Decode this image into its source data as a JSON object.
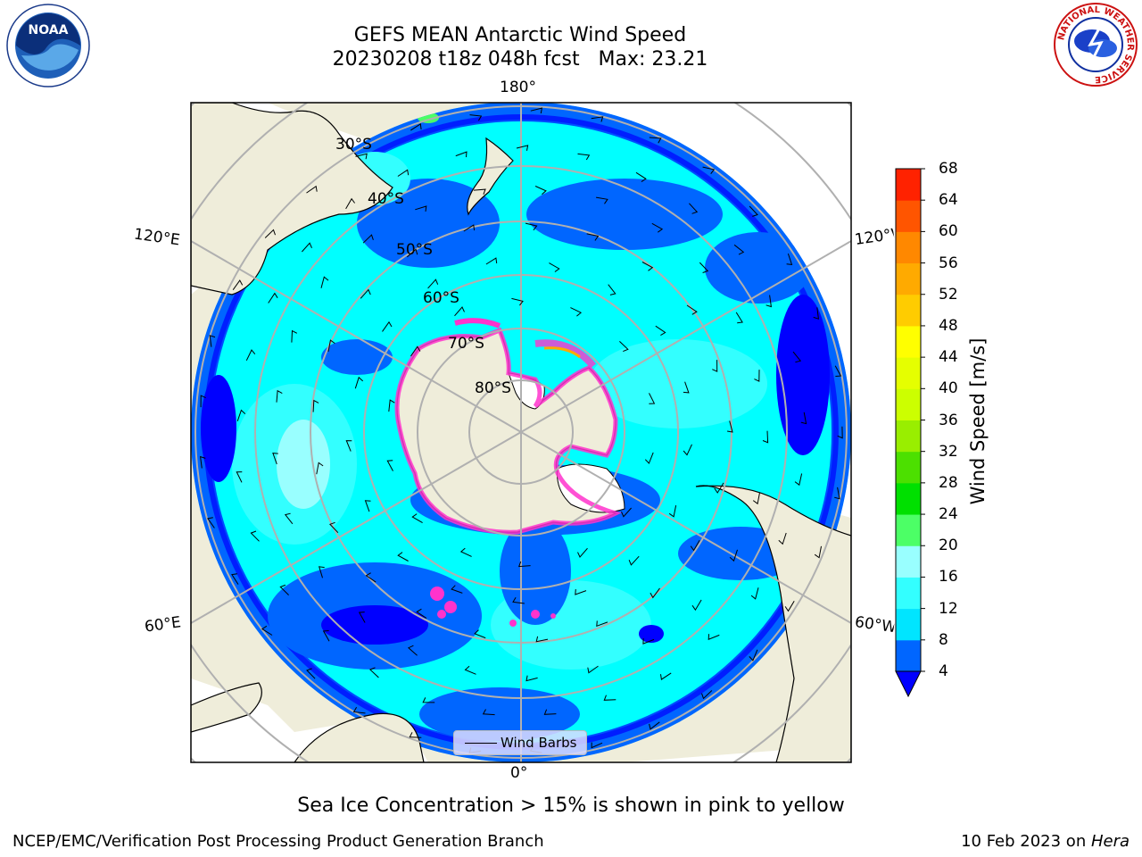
{
  "title": {
    "line1": "GEFS MEAN Antarctic Wind Speed",
    "line2": "20230208 t18z 048h fcst   Max: 23.21"
  },
  "map": {
    "longitude_labels": {
      "top": "180°",
      "bottom": "0°",
      "upper_left": "120°E",
      "lower_left": "60°E",
      "upper_right": "120°W",
      "lower_right": "60°W"
    },
    "latitude_labels": [
      "30°S",
      "40°S",
      "50°S",
      "60°S",
      "70°S",
      "80°S"
    ],
    "legend_label": "Wind Barbs",
    "colors": {
      "land": "#efedda",
      "ice_sheet": "#ffffff",
      "ocean_base": "#00ffff",
      "wind_low": "#0000ff",
      "wind_mid": "#0066ff",
      "sea_ice_edge": "#ff33cc",
      "gridlines": "#b0b0b0"
    }
  },
  "colorbar": {
    "label": "Wind Speed [m/s]",
    "ticks": [
      "4",
      "8",
      "12",
      "16",
      "20",
      "24",
      "28",
      "32",
      "36",
      "40",
      "44",
      "48",
      "52",
      "56",
      "60",
      "64",
      "68"
    ],
    "colors": [
      "#0066ff",
      "#00e5ff",
      "#33ffff",
      "#99ffff",
      "#4cff66",
      "#00e000",
      "#4ce000",
      "#99ee00",
      "#ccff00",
      "#e5ff00",
      "#ffff00",
      "#ffcc00",
      "#ffaa00",
      "#ff8800",
      "#ff5500",
      "#ff2200"
    ],
    "under_color": "#0000ff"
  },
  "subtitle": "Sea Ice Concentration > 15% is shown in pink to yellow",
  "footer": {
    "left": "NCEP/EMC/Verification Post Processing Product Generation Branch",
    "date": "10 Feb 2023 on ",
    "machine": "Hera"
  },
  "logos": {
    "noaa": "NOAA",
    "nws": "NATIONAL WEATHER SERVICE"
  }
}
